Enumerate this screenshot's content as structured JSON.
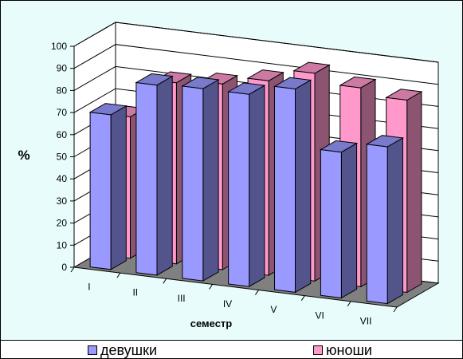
{
  "chart_data": {
    "type": "bar",
    "categories": [
      "I",
      "II",
      "III",
      "IV",
      "V",
      "VI",
      "VII"
    ],
    "series": [
      {
        "name": "девушки",
        "values": [
          70,
          86,
          87,
          87,
          92,
          66,
          71
        ],
        "color": "#9999FF"
      },
      {
        "name": "юноши",
        "values": [
          64,
          82,
          84,
          88,
          94,
          90,
          87
        ],
        "color": "#FF99CC"
      }
    ],
    "ylabel": "%",
    "xlabel": "семестр",
    "ylim": [
      0,
      100
    ],
    "yticks": [
      0,
      10,
      20,
      30,
      40,
      50,
      60,
      70,
      80,
      90,
      100
    ],
    "grid": true,
    "legend_position": "bottom",
    "colors": {
      "floor": "#808080",
      "wall": "#ffffff",
      "frame_bg": "#e8fcfc"
    }
  }
}
